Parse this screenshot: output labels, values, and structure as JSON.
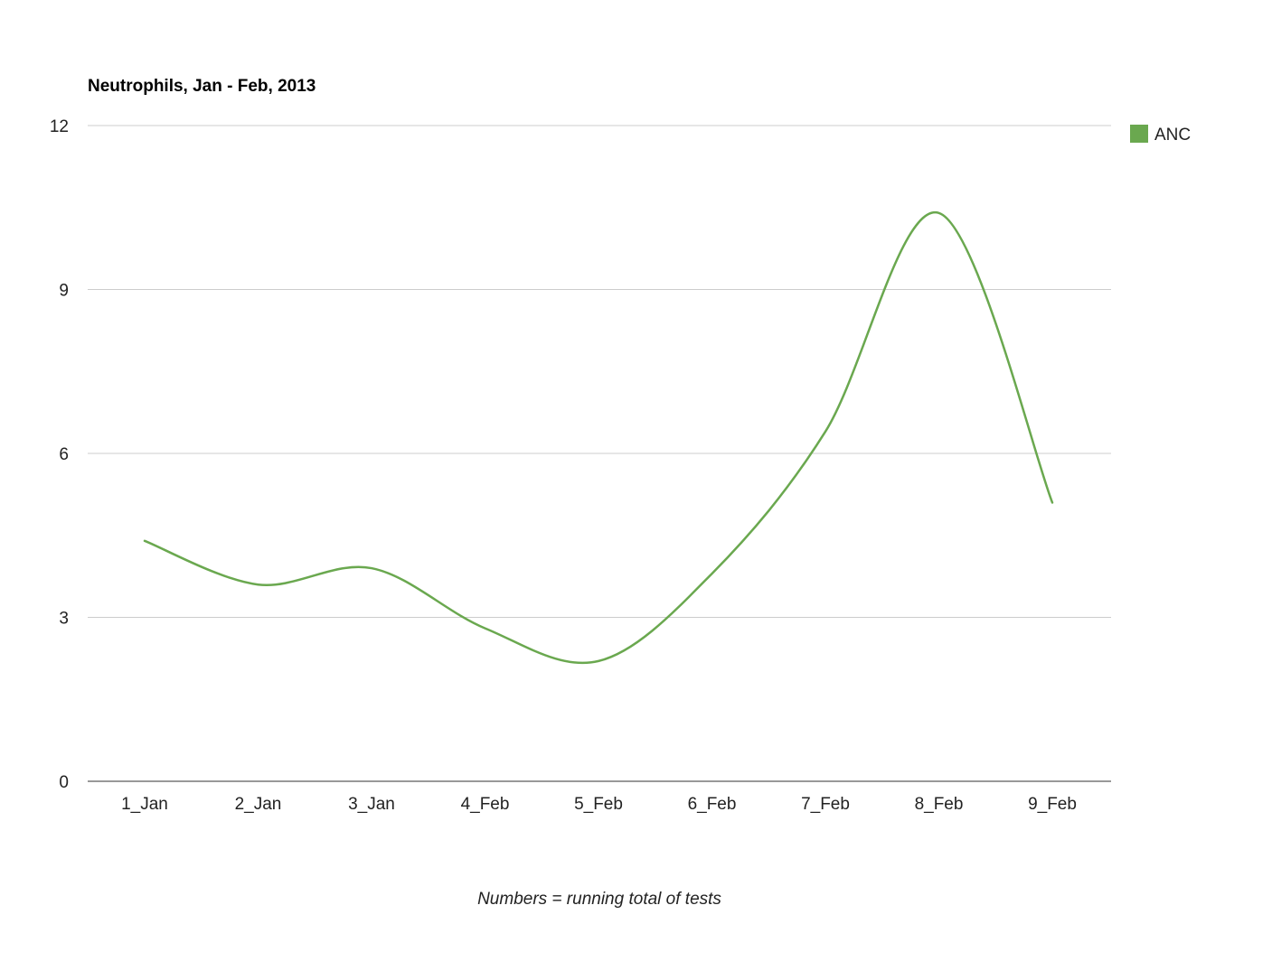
{
  "chart_data": {
    "type": "line",
    "title": "Neutrophils, Jan - Feb, 2013",
    "xlabel": "Numbers = running total of tests",
    "ylabel": "",
    "categories": [
      "1_Jan",
      "2_Jan",
      "3_Jan",
      "4_Feb",
      "5_Feb",
      "6_Feb",
      "7_Feb",
      "8_Feb",
      "9_Feb"
    ],
    "series": [
      {
        "name": "ANC",
        "color": "#6aa84f",
        "values": [
          4.4,
          3.6,
          3.9,
          2.8,
          2.2,
          3.8,
          6.4,
          10.4,
          5.1
        ]
      }
    ],
    "ylim": [
      0,
      12
    ],
    "yticks": [
      0,
      3,
      6,
      9,
      12
    ],
    "grid": true,
    "smooth": true,
    "legend_position": "right"
  }
}
